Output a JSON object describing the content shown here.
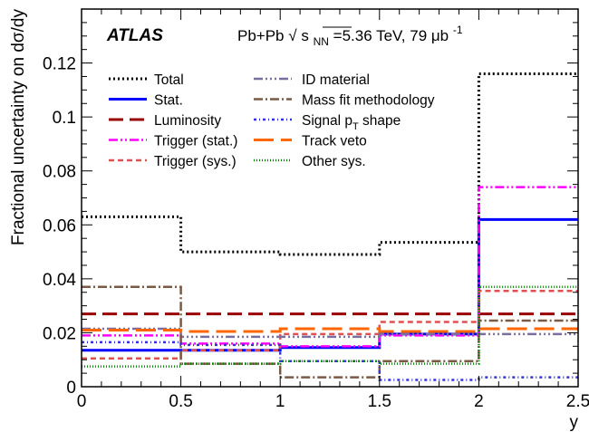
{
  "chart_data": {
    "type": "line",
    "step": true,
    "xlabel": "y",
    "ylabel": "Fractional uncertainty on dσ/dy",
    "xlim": [
      0,
      2.5
    ],
    "ylim": [
      0,
      0.14
    ],
    "x_ticks": [
      "0",
      "0.5",
      "1",
      "1.5",
      "2",
      "2.5"
    ],
    "y_ticks": [
      "0",
      "0.02",
      "0.04",
      "0.06",
      "0.08",
      "0.1",
      "0.12"
    ],
    "bin_edges": [
      0,
      0.5,
      1.0,
      1.5,
      2.0,
      2.5
    ],
    "experiment_label": "ATLAS",
    "collision_label": {
      "system": "Pb+Pb",
      "sqrt": "√",
      "s_sym": "s",
      "s_sub": "NN",
      "energy_text": "=5.36 TeV, 79 μb",
      "lumi_exp": "-1"
    },
    "series": [
      {
        "name": "Total",
        "color": "#000000",
        "dash": "2,3",
        "width": 3,
        "values": [
          0.063,
          0.05,
          0.049,
          0.0535,
          0.116
        ]
      },
      {
        "name": "Stat.",
        "color": "#0000ff",
        "dash": "",
        "width": 3,
        "values": [
          0.0135,
          0.0135,
          0.0145,
          0.0195,
          0.062
        ]
      },
      {
        "name": "Luminosity",
        "color": "#990000",
        "dash": "16,7",
        "width": 3,
        "values": [
          0.027,
          0.027,
          0.027,
          0.027,
          0.027
        ]
      },
      {
        "name": "Trigger (stat.)",
        "color": "#ff00ff",
        "dash": "10,3,2,3,2,3",
        "width": 2.5,
        "values": [
          0.019,
          0.016,
          0.015,
          0.019,
          0.074
        ]
      },
      {
        "name": "Trigger (sys.)",
        "color": "#e05050",
        "dash": "6,4",
        "width": 2.5,
        "values": [
          0.0105,
          0.0135,
          0.0195,
          0.024,
          0.0355
        ]
      },
      {
        "name": "ID material",
        "color": "#7a6ea0",
        "dash": "10,3,2,3,2,3,2,3",
        "width": 2.5,
        "values": [
          0.0215,
          0.0185,
          0.0185,
          0.0195,
          0.0195
        ]
      },
      {
        "name": "Mass fit methodology",
        "color": "#7a5a45",
        "dash": "10,3,2,3",
        "width": 2.5,
        "values": [
          0.037,
          0.0085,
          0.0035,
          0.0095,
          0.0245
        ]
      },
      {
        "name": "Signal p",
        "name_sub": "T",
        "name_suffix": " shape",
        "color": "#3333dd",
        "dash": "3,3,1,3",
        "width": 2.5,
        "values": [
          0.0165,
          0.0155,
          0.0095,
          0.0025,
          0.0035
        ]
      },
      {
        "name": "Track veto",
        "color": "#ff6600",
        "dash": "22,8",
        "width": 3,
        "values": [
          0.021,
          0.0205,
          0.0215,
          0.0205,
          0.0215
        ]
      },
      {
        "name": "Other sys.",
        "color": "#008800",
        "dash": "1,2",
        "width": 2.5,
        "values": [
          0.0075,
          0.0085,
          0.0095,
          0.0085,
          0.037
        ]
      }
    ],
    "legend_position": "top"
  }
}
